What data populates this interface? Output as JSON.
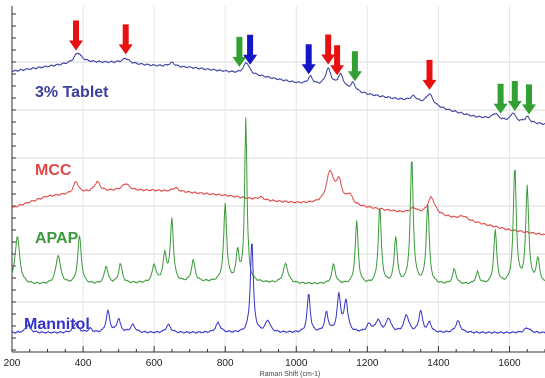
{
  "chart_data": {
    "type": "line",
    "title": "",
    "xlabel": "Raman Shift (cm-1)",
    "ylabel": "",
    "xlim": [
      200,
      1700
    ],
    "ylim": [
      0,
      360
    ],
    "x_ticks": [
      200,
      400,
      600,
      800,
      1000,
      1200,
      1400,
      1600
    ],
    "grid": true,
    "colors": {
      "tablet": "#3b3f9e",
      "mcc": "#e04848",
      "apap": "#3c9a3c",
      "mannitol": "#3333cc",
      "arrow_red": "#e81010",
      "arrow_green": "#33a033",
      "arrow_blue": "#1414c8"
    },
    "series": [
      {
        "name": "3% Tablet",
        "baseline": [
          [
            200,
            292
          ],
          [
            300,
            297
          ],
          [
            400,
            302
          ],
          [
            500,
            301
          ],
          [
            600,
            298
          ],
          [
            700,
            296
          ],
          [
            800,
            292
          ],
          [
            900,
            287
          ],
          [
            1000,
            280
          ],
          [
            1100,
            275
          ],
          [
            1200,
            268
          ],
          [
            1300,
            262
          ],
          [
            1400,
            254
          ],
          [
            1500,
            245
          ],
          [
            1600,
            240
          ],
          [
            1700,
            237
          ]
        ],
        "peaks": [
          [
            385,
            10,
            12
          ],
          [
            520,
            5,
            12
          ],
          [
            650,
            4,
            10
          ],
          [
            860,
            12,
            10
          ],
          [
            1040,
            8,
            8
          ],
          [
            1090,
            18,
            10
          ],
          [
            1125,
            14,
            10
          ],
          [
            1160,
            8,
            8
          ],
          [
            1330,
            6,
            12
          ],
          [
            1375,
            12,
            12
          ],
          [
            1560,
            6,
            10
          ],
          [
            1610,
            9,
            8
          ],
          [
            1650,
            6,
            8
          ]
        ]
      },
      {
        "name": "MCC",
        "baseline": [
          [
            200,
            150
          ],
          [
            300,
            162
          ],
          [
            400,
            166
          ],
          [
            500,
            168
          ],
          [
            600,
            168
          ],
          [
            700,
            166
          ],
          [
            800,
            163
          ],
          [
            900,
            158
          ],
          [
            1000,
            155
          ],
          [
            1100,
            154
          ],
          [
            1200,
            150
          ],
          [
            1300,
            145
          ],
          [
            1400,
            142
          ],
          [
            1500,
            135
          ],
          [
            1600,
            127
          ],
          [
            1700,
            122
          ]
        ],
        "peaks": [
          [
            380,
            12,
            8
          ],
          [
            440,
            10,
            10
          ],
          [
            520,
            7,
            12
          ],
          [
            660,
            4,
            10
          ],
          [
            900,
            3,
            10
          ],
          [
            1095,
            32,
            12
          ],
          [
            1120,
            22,
            10
          ],
          [
            1150,
            10,
            10
          ],
          [
            1330,
            5,
            12
          ],
          [
            1380,
            18,
            12
          ],
          [
            1470,
            4,
            15
          ]
        ]
      },
      {
        "name": "APAP",
        "baseline": [
          [
            200,
            70
          ],
          [
            400,
            70
          ],
          [
            600,
            72
          ],
          [
            800,
            73
          ],
          [
            1000,
            71
          ],
          [
            1200,
            70
          ],
          [
            1400,
            70
          ],
          [
            1600,
            70
          ],
          [
            1700,
            70
          ]
        ],
        "peaks": [
          [
            215,
            50,
            8
          ],
          [
            330,
            30,
            8
          ],
          [
            390,
            50,
            6
          ],
          [
            465,
            18,
            6
          ],
          [
            505,
            20,
            6
          ],
          [
            600,
            18,
            6
          ],
          [
            630,
            28,
            6
          ],
          [
            650,
            65,
            5
          ],
          [
            710,
            22,
            6
          ],
          [
            800,
            80,
            5
          ],
          [
            835,
            30,
            5
          ],
          [
            858,
            170,
            4
          ],
          [
            970,
            20,
            8
          ],
          [
            1105,
            20,
            6
          ],
          [
            1170,
            65,
            5
          ],
          [
            1235,
            80,
            5
          ],
          [
            1280,
            48,
            5
          ],
          [
            1325,
            130,
            5
          ],
          [
            1370,
            82,
            5
          ],
          [
            1445,
            15,
            6
          ],
          [
            1510,
            12,
            6
          ],
          [
            1560,
            55,
            5
          ],
          [
            1615,
            120,
            5
          ],
          [
            1650,
            100,
            5
          ],
          [
            1680,
            25,
            6
          ]
        ]
      },
      {
        "name": "Mannitol",
        "baseline": [
          [
            200,
            20
          ],
          [
            400,
            20
          ],
          [
            600,
            20
          ],
          [
            800,
            20
          ],
          [
            1000,
            20
          ],
          [
            1200,
            20
          ],
          [
            1400,
            20
          ],
          [
            1600,
            20
          ],
          [
            1700,
            20
          ]
        ],
        "peaks": [
          [
            245,
            8,
            8
          ],
          [
            380,
            10,
            8
          ],
          [
            420,
            4,
            6
          ],
          [
            470,
            22,
            6
          ],
          [
            500,
            14,
            6
          ],
          [
            540,
            8,
            8
          ],
          [
            640,
            8,
            8
          ],
          [
            780,
            10,
            8
          ],
          [
            875,
            95,
            5
          ],
          [
            920,
            12,
            8
          ],
          [
            1035,
            40,
            5
          ],
          [
            1085,
            20,
            6
          ],
          [
            1120,
            38,
            6
          ],
          [
            1140,
            32,
            6
          ],
          [
            1205,
            8,
            8
          ],
          [
            1230,
            12,
            8
          ],
          [
            1260,
            14,
            8
          ],
          [
            1310,
            18,
            8
          ],
          [
            1350,
            22,
            6
          ],
          [
            1375,
            10,
            6
          ],
          [
            1455,
            12,
            8
          ],
          [
            1650,
            5,
            10
          ]
        ]
      }
    ],
    "arrows": {
      "red": [
        380,
        520,
        1090,
        1115,
        1375
      ],
      "green": [
        840,
        1165,
        1575,
        1615,
        1655
      ],
      "blue": [
        870,
        1035
      ]
    }
  }
}
